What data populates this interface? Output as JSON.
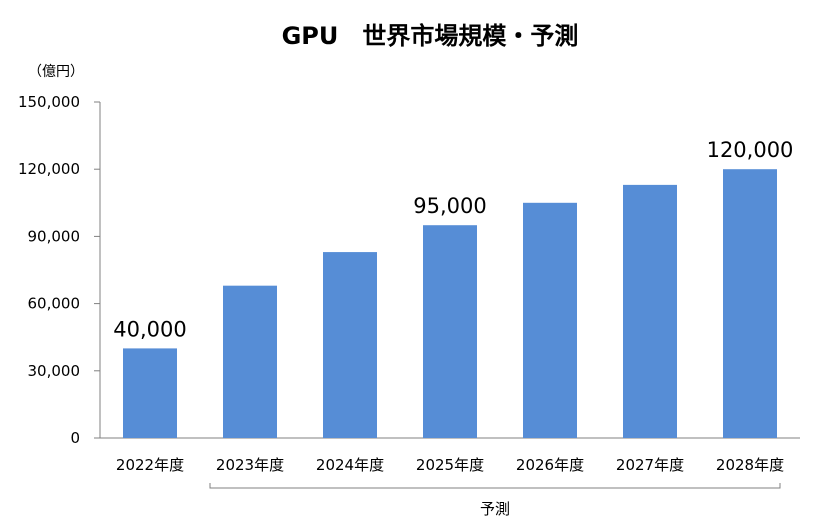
{
  "chart_data": {
    "type": "bar",
    "title": "GPU　世界市場規模・予測",
    "unit_label": "（億円）",
    "categories": [
      "2022年度",
      "2023年度",
      "2024年度",
      "2025年度",
      "2026年度",
      "2027年度",
      "2028年度"
    ],
    "values": [
      40000,
      68000,
      83000,
      95000,
      105000,
      113000,
      120000
    ],
    "data_labels": [
      {
        "category_index": 0,
        "text": "40,000"
      },
      {
        "category_index": 3,
        "text": "95,000"
      },
      {
        "category_index": 6,
        "text": "120,000"
      }
    ],
    "ylim": [
      0,
      150000
    ],
    "yticks": [
      0,
      30000,
      60000,
      90000,
      120000,
      150000
    ],
    "ytick_labels": [
      "0",
      "30,000",
      "60,000",
      "90,000",
      "120,000",
      "150,000"
    ],
    "bar_color": "#568dd6",
    "grid": false,
    "legend": "none",
    "forecast_bracket": {
      "label": "予測",
      "from_category_index": 1,
      "to_category_index": 6
    }
  }
}
